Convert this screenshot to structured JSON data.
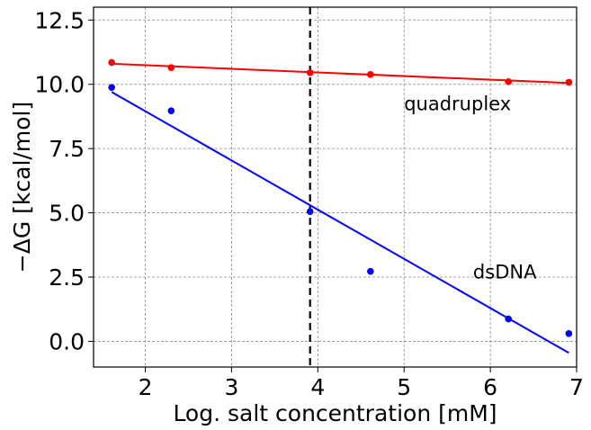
{
  "chart_data": {
    "type": "scatter",
    "xlabel": "Log. salt concentration [mM]",
    "ylabel": "−ΔG [kcal/mol]",
    "xlim": [
      1.4,
      7.0
    ],
    "ylim": [
      -1.0,
      13.0
    ],
    "xticks": [
      2,
      3,
      4,
      5,
      6,
      7
    ],
    "xtick_labels": [
      "2",
      "3",
      "4",
      "5",
      "6",
      "7"
    ],
    "yticks": [
      0.0,
      2.5,
      5.0,
      7.5,
      10.0,
      12.5
    ],
    "ytick_labels": [
      "0.0",
      "2.5",
      "5.0",
      "7.5",
      "10.0",
      "12.5"
    ],
    "grid": true,
    "vline": {
      "x": 3.91,
      "style": "dashed",
      "color": "#000000"
    },
    "series": [
      {
        "label_text": "quadruplex",
        "color": "#ff0000",
        "x": [
          1.61,
          2.3,
          3.91,
          4.61,
          6.21,
          6.91
        ],
        "y": [
          10.85,
          10.65,
          10.45,
          10.38,
          10.1,
          10.08
        ],
        "fit_line": {
          "x": [
            1.61,
            6.91
          ],
          "y": [
            10.8,
            10.05
          ]
        }
      },
      {
        "label_text": "dsDNA",
        "color": "#0000ff",
        "x": [
          1.61,
          2.3,
          3.91,
          4.61,
          6.21,
          6.91
        ],
        "y": [
          9.88,
          8.97,
          5.05,
          2.72,
          0.87,
          0.3
        ],
        "fit_line": {
          "x": [
            1.61,
            6.91
          ],
          "y": [
            9.7,
            -0.45
          ]
        }
      }
    ],
    "annotations": [
      {
        "text": "quadruplex",
        "x": 5.0,
        "y": 9.0
      },
      {
        "text": "dsDNA",
        "x": 5.8,
        "y": 2.45
      }
    ]
  }
}
